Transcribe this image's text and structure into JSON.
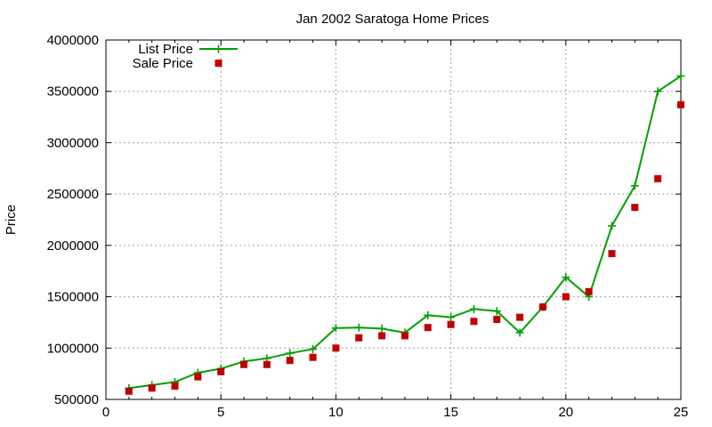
{
  "chart_data": {
    "type": "line",
    "title": "Jan 2002 Saratoga Home Prices",
    "xlabel": "",
    "ylabel": "Price",
    "xlim": [
      0,
      25
    ],
    "ylim": [
      500000,
      4000000
    ],
    "x_ticks": [
      "0",
      "5",
      "10",
      "15",
      "20",
      "25"
    ],
    "y_ticks": [
      "500000",
      "1000000",
      "1500000",
      "2000000",
      "2500000",
      "3000000",
      "3500000",
      "4000000"
    ],
    "grid": true,
    "legend_position": "top-left",
    "series": [
      {
        "name": "List Price",
        "style": "line-with-plus-markers",
        "color": "#00a000",
        "x": [
          1,
          2,
          3,
          4,
          5,
          6,
          7,
          8,
          9,
          10,
          11,
          12,
          13,
          14,
          15,
          16,
          17,
          18,
          19,
          20,
          21,
          22,
          23,
          24,
          25
        ],
        "values": [
          610000,
          640000,
          670000,
          760000,
          800000,
          870000,
          900000,
          950000,
          990000,
          1195000,
          1200000,
          1190000,
          1150000,
          1320000,
          1300000,
          1380000,
          1360000,
          1150000,
          1400000,
          1690000,
          1500000,
          2190000,
          2580000,
          3500000,
          3650000
        ]
      },
      {
        "name": "Sale Price",
        "style": "square-markers",
        "color": "#c00000",
        "x": [
          1,
          2,
          3,
          4,
          5,
          6,
          7,
          8,
          9,
          10,
          11,
          12,
          13,
          14,
          15,
          16,
          17,
          18,
          19,
          20,
          21,
          22,
          23,
          24,
          25
        ],
        "values": [
          580000,
          610000,
          630000,
          720000,
          770000,
          840000,
          840000,
          880000,
          910000,
          1000000,
          1100000,
          1120000,
          1120000,
          1200000,
          1230000,
          1260000,
          1280000,
          1300000,
          1400000,
          1500000,
          1550000,
          1920000,
          2370000,
          2650000,
          3370000
        ]
      }
    ]
  }
}
